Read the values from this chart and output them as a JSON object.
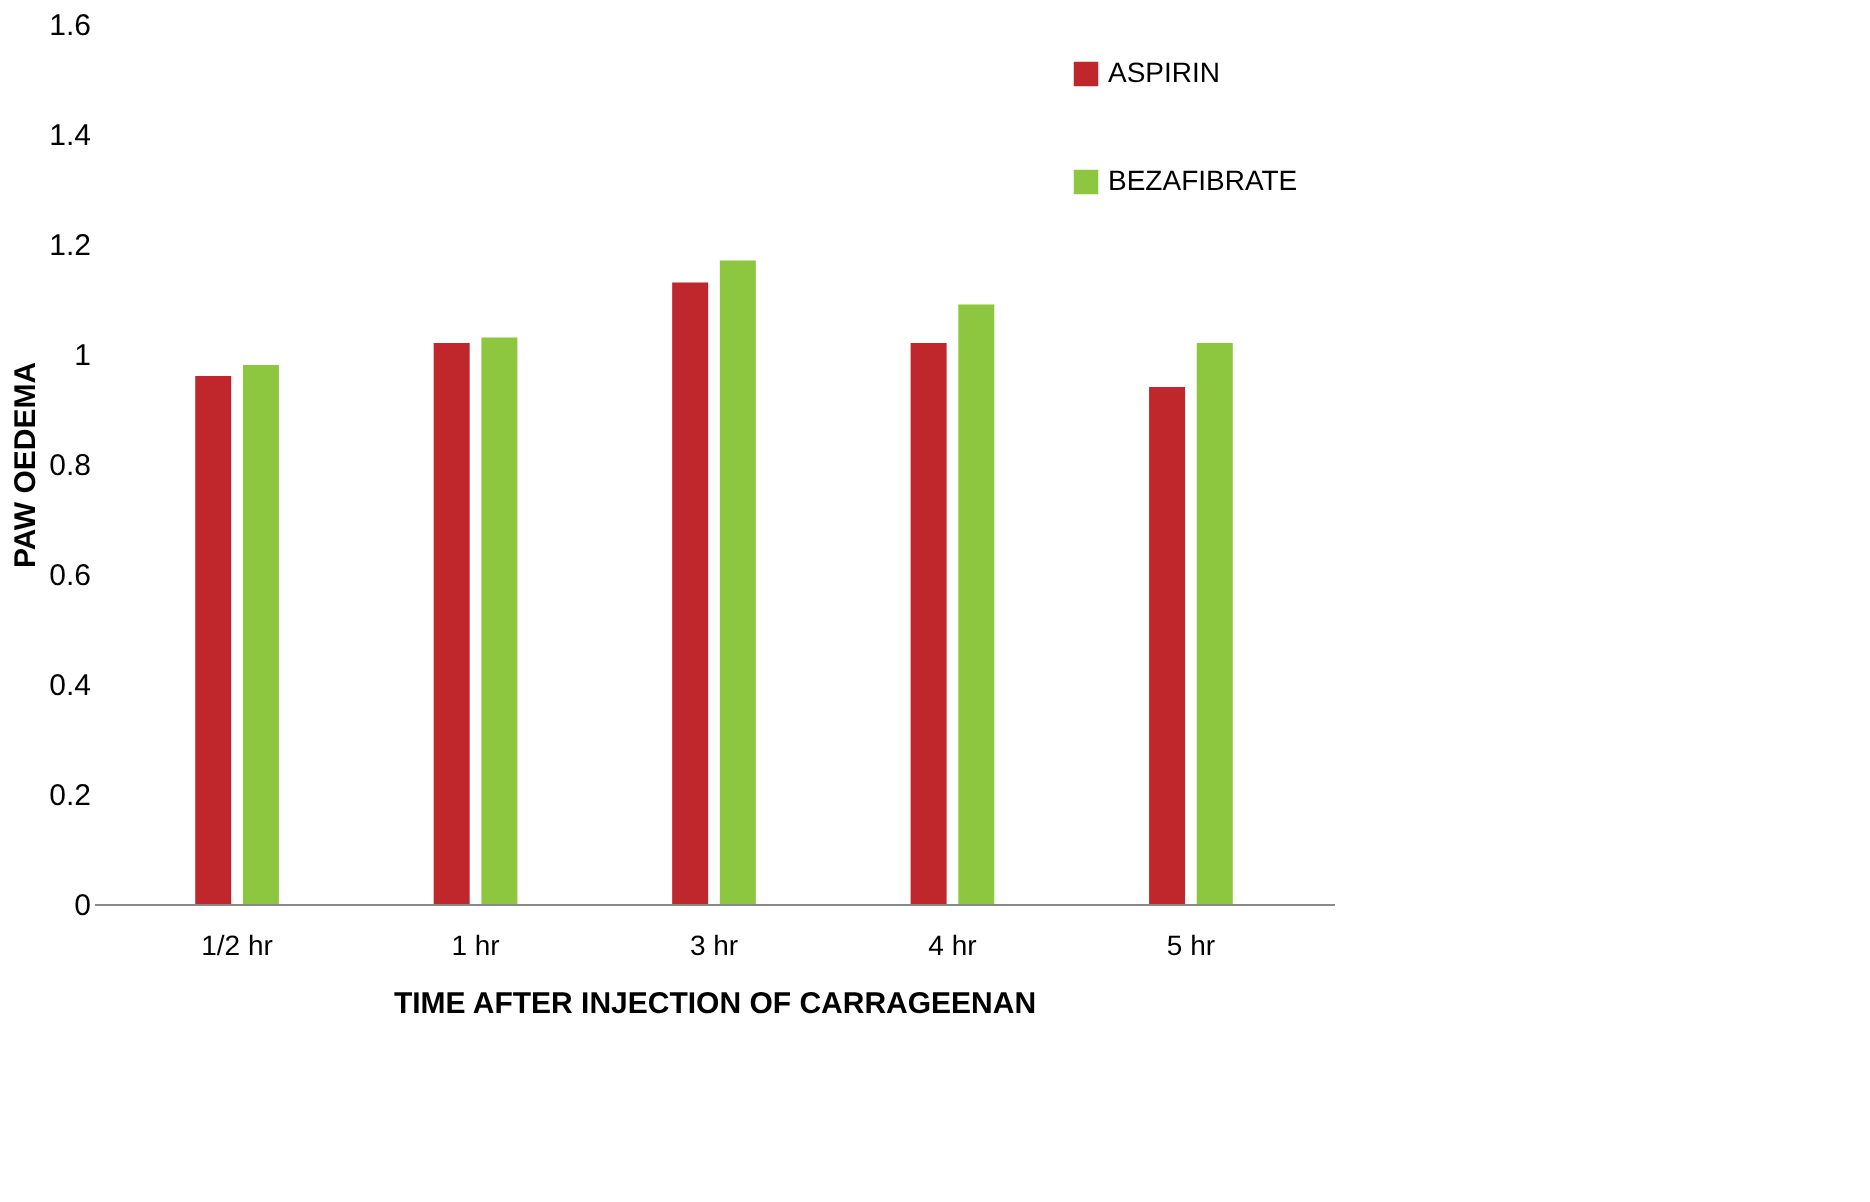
{
  "chart_data": {
    "type": "bar",
    "xlabel": "TIME AFTER INJECTION OF CARRAGEENAN",
    "ylabel": "PAW OEDEMA",
    "categories": [
      "1/2 hr",
      "1 hr",
      "3 hr",
      "4 hr",
      "5  hr"
    ],
    "series": [
      {
        "name": "ASPIRIN",
        "color": "#c0272d",
        "values": [
          0.96,
          1.02,
          1.13,
          1.02,
          0.94
        ]
      },
      {
        "name": "BEZAFIBRATE",
        "color": "#8dc63f",
        "values": [
          0.98,
          1.03,
          1.17,
          1.09,
          1.02
        ]
      }
    ],
    "ylim": [
      0,
      1.6
    ],
    "yticks": [
      0,
      0.2,
      0.4,
      0.6,
      0.8,
      1,
      1.2,
      1.4,
      1.6
    ],
    "grid": false,
    "legend": "top right"
  }
}
